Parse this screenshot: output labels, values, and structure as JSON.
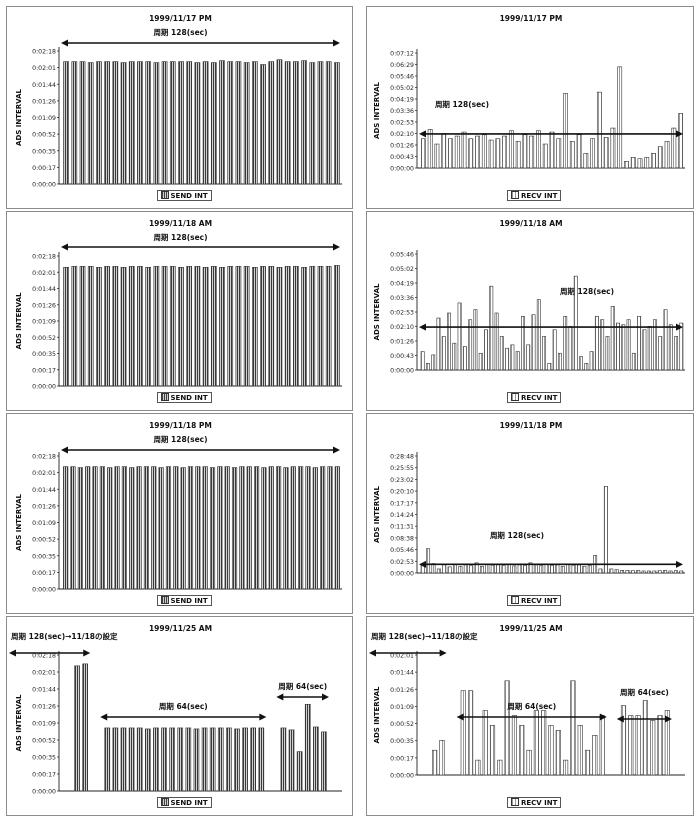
{
  "chart_data": [
    {
      "id": "p1",
      "type": "bar",
      "title": "1999/11/17 PM",
      "ylabel": "ADS INTERVAL",
      "legend": "SEND INT",
      "yticks": [
        "0:00:00",
        "0:00:17",
        "0:00:35",
        "0:00:52",
        "0:01:09",
        "0:01:26",
        "0:01:44",
        "0:02:01",
        "0:02:18"
      ],
      "ylim": [
        0,
        138
      ],
      "values": [
        127,
        127,
        127,
        126,
        127,
        127,
        127,
        126,
        127,
        127,
        127,
        126,
        127,
        127,
        127,
        127,
        126,
        127,
        126,
        128,
        127,
        127,
        126,
        127,
        124,
        127,
        129,
        127,
        127,
        128,
        126,
        127,
        127,
        126
      ],
      "annotations": [
        {
          "text": "周期 128(sec)",
          "arrow": "full-span"
        }
      ]
    },
    {
      "id": "p2",
      "type": "bar",
      "title": "1999/11/17 PM",
      "ylabel": "ADS INTERVAL",
      "legend": "RECV INT",
      "yticks": [
        "0:00:00",
        "0:00:43",
        "0:01:26",
        "0:02:10",
        "0:02:53",
        "0:03:36",
        "0:04:19",
        "0:05:02",
        "0:05:46",
        "0:06:29",
        "0:07:12"
      ],
      "ylim": [
        0,
        432
      ],
      "values": [
        110,
        145,
        90,
        130,
        110,
        120,
        135,
        110,
        120,
        125,
        105,
        110,
        120,
        140,
        100,
        125,
        120,
        140,
        90,
        135,
        110,
        280,
        100,
        125,
        55,
        110,
        285,
        115,
        150,
        380,
        25,
        40,
        35,
        40,
        55,
        80,
        100,
        150,
        205
      ],
      "annotations": [
        {
          "text": "周期 128(sec)",
          "arrow": "full-span-at-128"
        }
      ]
    },
    {
      "id": "p3",
      "type": "bar",
      "title": "1999/11/18 AM",
      "ylabel": "ADS INTERVAL",
      "legend": "SEND INT",
      "yticks": [
        "0:00:00",
        "0:00:17",
        "0:00:35",
        "0:00:52",
        "0:01:09",
        "0:01:26",
        "0:01:44",
        "0:02:01",
        "0:02:18"
      ],
      "ylim": [
        0,
        138
      ],
      "values": [
        126,
        127,
        127,
        127,
        126,
        127,
        127,
        126,
        127,
        127,
        126,
        127,
        127,
        127,
        126,
        127,
        127,
        126,
        127,
        126,
        127,
        127,
        127,
        126,
        127,
        127,
        126,
        127,
        127,
        126,
        127,
        127,
        127,
        128
      ],
      "annotations": [
        {
          "text": "周期 128(sec)",
          "arrow": "full-span"
        }
      ]
    },
    {
      "id": "p4",
      "type": "bar",
      "title": "1999/11/18 AM",
      "ylabel": "ADS INTERVAL",
      "legend": "RECV INT",
      "yticks": [
        "0:00:00",
        "0:00:43",
        "0:01:26",
        "0:02:10",
        "0:02:53",
        "0:03:36",
        "0:04:19",
        "0:05:02",
        "0:05:46"
      ],
      "ylim": [
        0,
        346
      ],
      "values": [
        55,
        20,
        45,
        155,
        100,
        170,
        80,
        200,
        70,
        150,
        180,
        50,
        120,
        250,
        170,
        100,
        65,
        75,
        55,
        160,
        75,
        165,
        210,
        100,
        20,
        120,
        50,
        160,
        130,
        280,
        40,
        20,
        55,
        160,
        150,
        100,
        190,
        140,
        135,
        150,
        50,
        160,
        120,
        130,
        150,
        100,
        180,
        135,
        100,
        140
      ],
      "annotations": [
        {
          "text": "周期 128(sec)",
          "arrow": "full-span-at-128"
        }
      ]
    },
    {
      "id": "p5",
      "type": "bar",
      "title": "1999/11/18 PM",
      "ylabel": "ADS INTERVAL",
      "legend": "SEND INT",
      "yticks": [
        "0:00:00",
        "0:00:17",
        "0:00:35",
        "0:00:52",
        "0:01:09",
        "0:01:26",
        "0:01:44",
        "0:02:01",
        "0:02:18"
      ],
      "ylim": [
        0,
        138
      ],
      "values": [
        127,
        127,
        126,
        127,
        127,
        127,
        126,
        127,
        127,
        126,
        127,
        127,
        127,
        126,
        127,
        127,
        126,
        127,
        127,
        127,
        126,
        127,
        127,
        126,
        127,
        127,
        127,
        126,
        127,
        127,
        126,
        127,
        127,
        127,
        126,
        127,
        127,
        127
      ],
      "annotations": [
        {
          "text": "周期 128(sec)",
          "arrow": "full-span"
        }
      ]
    },
    {
      "id": "p6",
      "type": "bar",
      "title": "1999/11/18 PM",
      "ylabel": "ADS INTERVAL",
      "legend": "RECV INT",
      "yticks": [
        "0:00:00",
        "0:02:53",
        "0:05:46",
        "0:08:38",
        "0:11:31",
        "0:14:24",
        "0:17:17",
        "0:20:10",
        "0:23:02",
        "0:25:55",
        "0:28:48"
      ],
      "ylim": [
        0,
        1728
      ],
      "values": [
        120,
        360,
        140,
        60,
        120,
        90,
        130,
        100,
        120,
        110,
        150,
        100,
        130,
        115,
        120,
        110,
        130,
        105,
        120,
        110,
        150,
        120,
        110,
        130,
        110,
        120,
        100,
        125,
        115,
        120,
        100,
        110,
        260,
        60,
        1280,
        60,
        50,
        40,
        40,
        35,
        40,
        30,
        30,
        30,
        35,
        40,
        30,
        35,
        30
      ],
      "annotations": [
        {
          "text": "周期 128(sec)",
          "arrow": "full-span-at-128"
        }
      ]
    },
    {
      "id": "p7",
      "type": "bar",
      "title": "1999/11/25 AM",
      "ylabel": "ADS INTERVAL",
      "legend": "SEND INT",
      "yticks": [
        "0:00:00",
        "0:00:17",
        "0:00:35",
        "0:00:52",
        "0:01:09",
        "0:01:26",
        "0:01:44",
        "0:02:01",
        "0:02:18"
      ],
      "ylim": [
        0,
        138
      ],
      "groups": [
        {
          "values": [
            127,
            129
          ]
        },
        {
          "values": [
            64,
            64,
            64,
            64,
            64,
            63,
            64,
            64,
            64,
            64,
            64,
            63,
            64,
            64,
            64,
            64,
            63,
            64,
            64,
            64
          ]
        },
        {
          "values": [
            64,
            62,
            40,
            88,
            65,
            60
          ]
        }
      ],
      "annotations": [
        {
          "text": "周期 128(sec)→11/18の設定",
          "arrow": "group-1"
        },
        {
          "text": "周期 64(sec)",
          "arrow": "group-2"
        },
        {
          "text": "周期 64(sec)",
          "arrow": "group-3"
        }
      ]
    },
    {
      "id": "p8",
      "type": "bar",
      "title": "1999/11/25 AM",
      "ylabel": "ADS INTERVAL",
      "legend": "RECV INT",
      "yticks": [
        "0:00:00",
        "0:00:17",
        "0:00:35",
        "0:00:52",
        "0:01:09",
        "0:01:26",
        "0:01:44",
        "0:02:01"
      ],
      "ylim": [
        0,
        121
      ],
      "groups": [
        {
          "values": [
            25,
            35
          ]
        },
        {
          "values": [
            85,
            85,
            15,
            65,
            50,
            15,
            95,
            60,
            50,
            25,
            65,
            65,
            50,
            45,
            15,
            95,
            50,
            25,
            40,
            60
          ]
        },
        {
          "values": [
            70,
            60,
            60,
            75,
            55,
            60,
            65
          ]
        }
      ],
      "annotations": [
        {
          "text": "周期 128(sec)→11/18の設定",
          "arrow": "group-1"
        },
        {
          "text": "周期 64(sec)",
          "arrow": "group-2"
        },
        {
          "text": "周期 64(sec)",
          "arrow": "group-3"
        }
      ]
    }
  ]
}
